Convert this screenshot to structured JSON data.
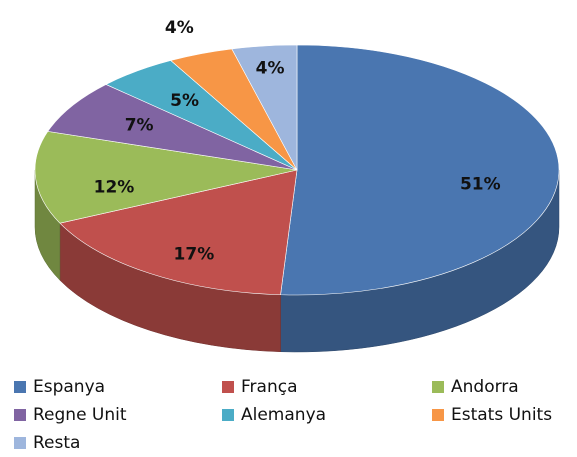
{
  "chart_data": {
    "type": "pie",
    "categories": [
      "Espanya",
      "França",
      "Andorra",
      "Regne Unit",
      "Alemanya",
      "Estats Units",
      "Resta"
    ],
    "values": [
      51,
      17,
      12,
      7,
      5,
      4,
      4
    ],
    "value_labels": [
      "51%",
      "17%",
      "12%",
      "7%",
      "5%",
      "4%",
      "4%"
    ],
    "colors": [
      "#4a76b0",
      "#c0504d",
      "#9bbb59",
      "#8064a2",
      "#4bacc6",
      "#f79646",
      "#9eb6dd"
    ],
    "legend": "bottom"
  }
}
